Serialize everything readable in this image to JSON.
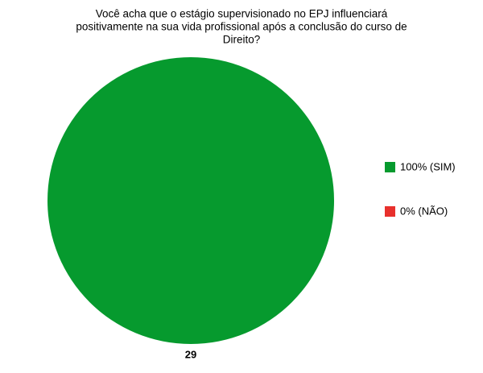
{
  "chart_data": {
    "type": "pie",
    "title": [
      "Você acha que o estágio supervisionado no EPJ influenciará",
      "positivamente na sua vida profissional após a conclusão do curso de",
      "Direito?"
    ],
    "categories": [
      "100% (SIM)",
      "0% (NÃO)"
    ],
    "values": [
      29,
      0
    ],
    "colors": [
      "#069a2e",
      "#e8302c"
    ],
    "legend": "right"
  }
}
